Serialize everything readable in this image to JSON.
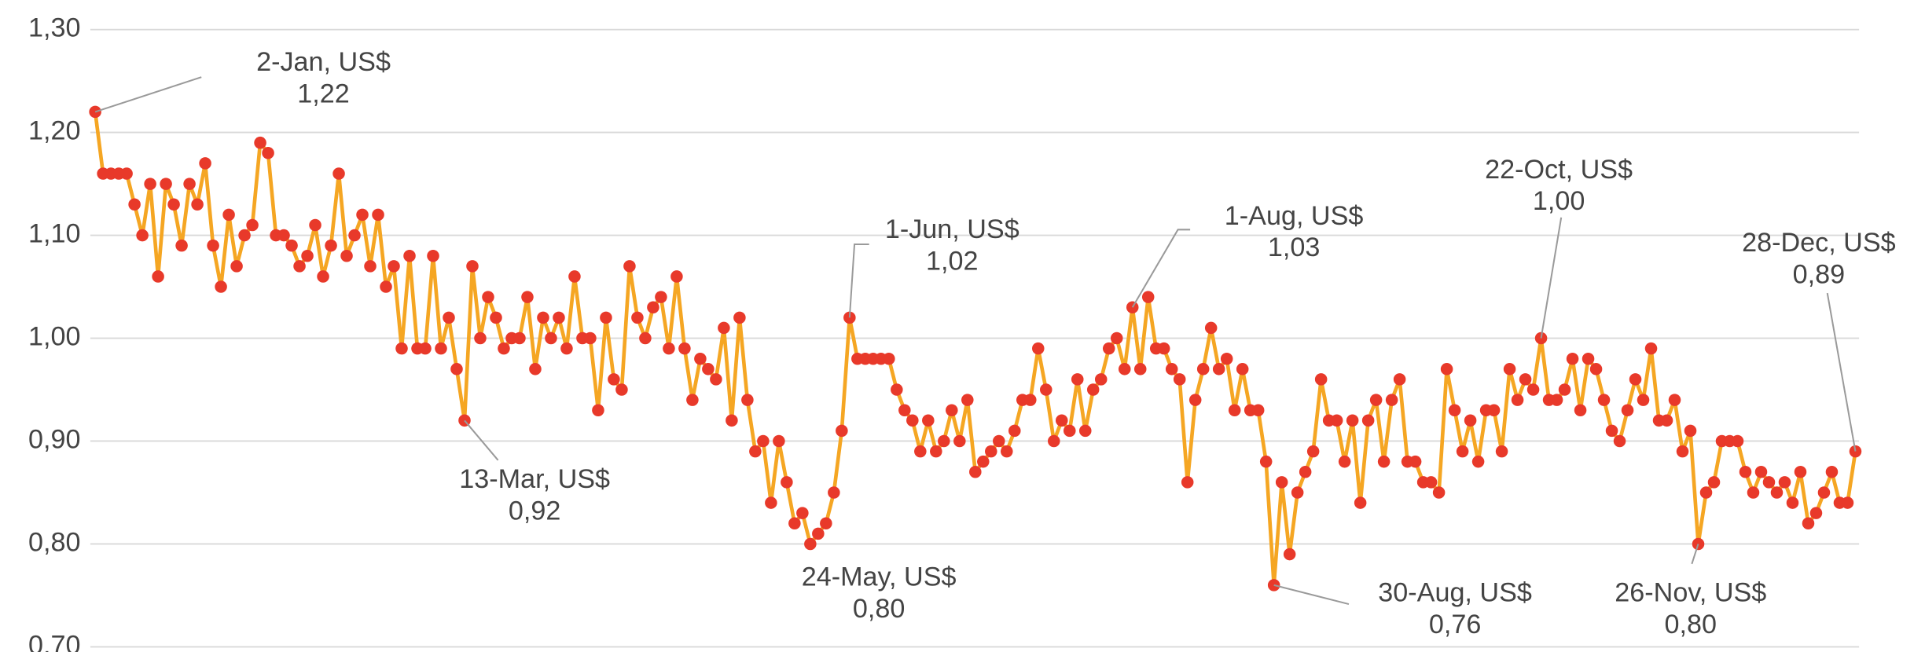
{
  "chart_data": {
    "type": "line",
    "ylim": [
      0.7,
      1.3
    ],
    "yticks": [
      {
        "value": 0.7,
        "label": "0,70"
      },
      {
        "value": 0.8,
        "label": "0,80"
      },
      {
        "value": 0.9,
        "label": "0,90"
      },
      {
        "value": 1.0,
        "label": "1,00"
      },
      {
        "value": 1.1,
        "label": "1,10"
      },
      {
        "value": 1.2,
        "label": "1,20"
      },
      {
        "value": 1.3,
        "label": "1,30"
      }
    ],
    "grid": true,
    "color": "#f5a623",
    "marker_color": "#e8392a",
    "values": [
      1.22,
      1.16,
      1.16,
      1.16,
      1.16,
      1.13,
      1.1,
      1.15,
      1.06,
      1.15,
      1.13,
      1.09,
      1.15,
      1.13,
      1.17,
      1.09,
      1.05,
      1.12,
      1.07,
      1.1,
      1.11,
      1.19,
      1.18,
      1.1,
      1.1,
      1.09,
      1.07,
      1.08,
      1.11,
      1.06,
      1.09,
      1.16,
      1.08,
      1.1,
      1.12,
      1.07,
      1.12,
      1.05,
      1.07,
      0.99,
      1.08,
      0.99,
      0.99,
      1.08,
      0.99,
      1.02,
      0.97,
      0.92,
      1.07,
      1.0,
      1.04,
      1.02,
      0.99,
      1.0,
      1.0,
      1.04,
      0.97,
      1.02,
      1.0,
      1.02,
      0.99,
      1.06,
      1.0,
      1.0,
      0.93,
      1.02,
      0.96,
      0.95,
      1.07,
      1.02,
      1.0,
      1.03,
      1.04,
      0.99,
      1.06,
      0.99,
      0.94,
      0.98,
      0.97,
      0.96,
      1.01,
      0.92,
      1.02,
      0.94,
      0.89,
      0.9,
      0.84,
      0.9,
      0.86,
      0.82,
      0.83,
      0.8,
      0.81,
      0.82,
      0.85,
      0.91,
      1.02,
      0.98,
      0.98,
      0.98,
      0.98,
      0.98,
      0.95,
      0.93,
      0.92,
      0.89,
      0.92,
      0.89,
      0.9,
      0.93,
      0.9,
      0.94,
      0.87,
      0.88,
      0.89,
      0.9,
      0.89,
      0.91,
      0.94,
      0.94,
      0.99,
      0.95,
      0.9,
      0.92,
      0.91,
      0.96,
      0.91,
      0.95,
      0.96,
      0.99,
      1.0,
      0.97,
      1.03,
      0.97,
      1.04,
      0.99,
      0.99,
      0.97,
      0.96,
      0.86,
      0.94,
      0.97,
      1.01,
      0.97,
      0.98,
      0.93,
      0.97,
      0.93,
      0.93,
      0.88,
      0.76,
      0.86,
      0.79,
      0.85,
      0.87,
      0.89,
      0.96,
      0.92,
      0.92,
      0.88,
      0.92,
      0.84,
      0.92,
      0.94,
      0.88,
      0.94,
      0.96,
      0.88,
      0.88,
      0.86,
      0.86,
      0.85,
      0.97,
      0.93,
      0.89,
      0.92,
      0.88,
      0.93,
      0.93,
      0.89,
      0.97,
      0.94,
      0.96,
      0.95,
      1.0,
      0.94,
      0.94,
      0.95,
      0.98,
      0.93,
      0.98,
      0.97,
      0.94,
      0.91,
      0.9,
      0.93,
      0.96,
      0.94,
      0.99,
      0.92,
      0.92,
      0.94,
      0.89,
      0.91,
      0.8,
      0.85,
      0.86,
      0.9,
      0.9,
      0.9,
      0.87,
      0.85,
      0.87,
      0.86,
      0.85,
      0.86,
      0.84,
      0.87,
      0.82,
      0.83,
      0.85,
      0.87,
      0.84,
      0.84,
      0.89
    ],
    "labels": [
      "2-Jan,  US$",
      null,
      null,
      null,
      null,
      null,
      null,
      null,
      null,
      null,
      null,
      null,
      null,
      null,
      null,
      null,
      null,
      null,
      null,
      null,
      null,
      null,
      null,
      null,
      null,
      null,
      null,
      null,
      null,
      null,
      null,
      null,
      null,
      null,
      null,
      null,
      null,
      null,
      null,
      null,
      null,
      null,
      null,
      null,
      null,
      null,
      null,
      "13-Mar,  US$",
      null,
      null,
      null,
      null,
      null,
      null,
      null,
      null,
      null,
      null,
      null,
      null,
      null,
      null,
      null,
      null,
      null,
      null,
      null,
      null,
      null,
      null,
      null,
      null,
      null,
      null,
      null,
      null,
      null,
      null,
      null,
      null,
      null,
      null,
      null,
      null,
      null,
      null,
      null,
      null,
      null,
      null,
      null,
      "24-May,  US$",
      null,
      null,
      null,
      null,
      "1-Jun,  US$",
      null,
      null,
      null,
      null,
      null,
      null,
      null,
      null,
      null,
      null,
      null,
      null,
      null,
      null,
      null,
      null,
      null,
      null,
      null,
      null,
      null,
      null,
      null,
      null,
      null,
      null,
      null,
      null,
      null,
      null,
      null,
      null,
      null,
      null,
      null,
      "1-Aug,  US$",
      null,
      null,
      null,
      null,
      null,
      null,
      null,
      null,
      null,
      null,
      null,
      null,
      null,
      null,
      null,
      null,
      null,
      "30-Aug,  US$",
      null,
      null,
      null,
      null,
      null,
      null,
      null,
      null,
      null,
      null,
      null,
      null,
      null,
      null,
      null,
      null,
      null,
      null,
      null,
      null,
      null,
      null,
      null,
      null,
      null,
      null,
      null,
      null,
      null,
      null,
      null,
      null,
      null,
      "22-Oct,  US$",
      null,
      null,
      null,
      null,
      null,
      null,
      null,
      null,
      null,
      null,
      null,
      null,
      null,
      null,
      null,
      null,
      null,
      null,
      null,
      "26-Nov,  US$",
      null,
      null,
      null,
      null,
      null,
      null,
      null,
      null,
      null,
      null,
      null,
      null,
      null,
      null,
      null,
      null,
      null,
      null,
      null,
      "28-Dec,  US$"
    ],
    "value_labels": [
      "1,22",
      null,
      null,
      null,
      null,
      null,
      null,
      null,
      null,
      null,
      null,
      null,
      null,
      null,
      null,
      null,
      null,
      null,
      null,
      null,
      null,
      null,
      null,
      null,
      null,
      null,
      null,
      null,
      null,
      null,
      null,
      null,
      null,
      null,
      null,
      null,
      null,
      null,
      null,
      null,
      null,
      null,
      null,
      null,
      null,
      null,
      null,
      "0,92",
      null,
      null,
      null,
      null,
      null,
      null,
      null,
      null,
      null,
      null,
      null,
      null,
      null,
      null,
      null,
      null,
      null,
      null,
      null,
      null,
      null,
      null,
      null,
      null,
      null,
      null,
      null,
      null,
      null,
      null,
      null,
      null,
      null,
      null,
      null,
      null,
      null,
      null,
      null,
      null,
      null,
      null,
      null,
      "0,80",
      null,
      null,
      null,
      null,
      "1,02",
      null,
      null,
      null,
      null,
      null,
      null,
      null,
      null,
      null,
      null,
      null,
      null,
      null,
      null,
      null,
      null,
      null,
      null,
      null,
      null,
      null,
      null,
      null,
      null,
      null,
      null,
      null,
      null,
      null,
      null,
      null,
      null,
      null,
      null,
      null,
      "1,03",
      null,
      null,
      null,
      null,
      null,
      null,
      null,
      null,
      null,
      null,
      null,
      null,
      null,
      null,
      null,
      null,
      null,
      "0,76",
      null,
      null,
      null,
      null,
      null,
      null,
      null,
      null,
      null,
      null,
      null,
      null,
      null,
      null,
      null,
      null,
      null,
      null,
      null,
      null,
      null,
      null,
      null,
      null,
      null,
      null,
      null,
      null,
      null,
      null,
      null,
      null,
      null,
      "1,00",
      null,
      null,
      null,
      null,
      null,
      null,
      null,
      null,
      null,
      null,
      null,
      null,
      null,
      null,
      null,
      null,
      null,
      null,
      null,
      "0,80",
      null,
      null,
      null,
      null,
      null,
      null,
      null,
      null,
      null,
      null,
      null,
      null,
      null,
      null,
      null,
      null,
      null,
      null,
      null,
      "0,89"
    ]
  }
}
